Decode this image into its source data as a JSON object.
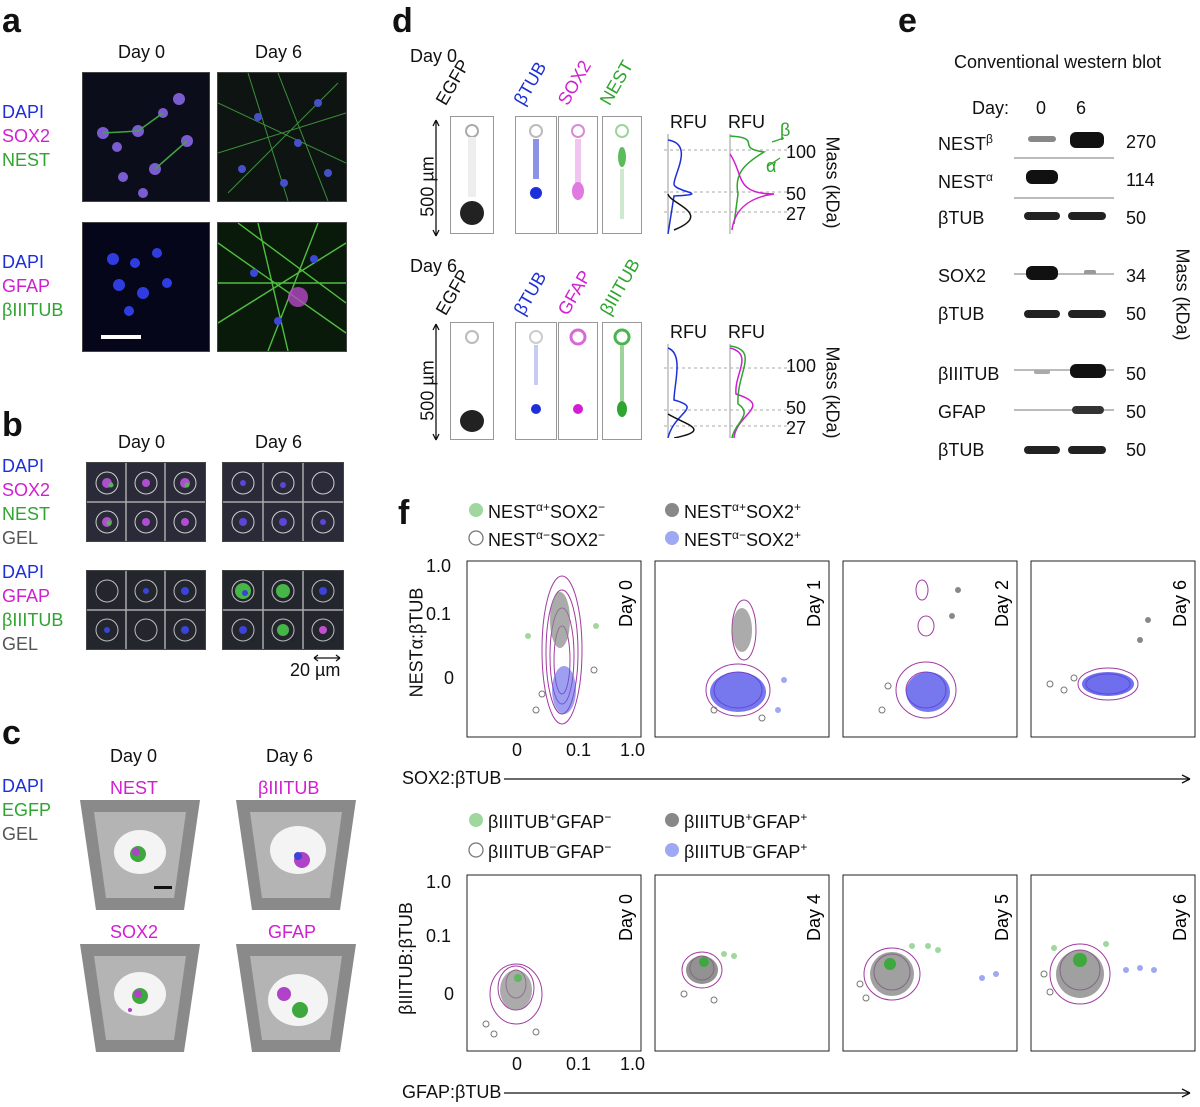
{
  "panels": {
    "a": "a",
    "b": "b",
    "c": "c",
    "d": "d",
    "e": "e",
    "f": "f"
  },
  "panel_a": {
    "days": [
      "Day 0",
      "Day 6"
    ],
    "row1_labels": [
      "DAPI",
      "SOX2",
      "NEST"
    ],
    "row2_labels": [
      "DAPI",
      "GFAP",
      "βIIITUB"
    ]
  },
  "panel_b": {
    "days": [
      "Day 0",
      "Day 6"
    ],
    "row1_labels": [
      "DAPI",
      "SOX2",
      "NEST",
      "GEL"
    ],
    "row2_labels": [
      "DAPI",
      "GFAP",
      "βIIITUB",
      "GEL"
    ],
    "scale": "20 µm"
  },
  "panel_c": {
    "days": [
      "Day 0",
      "Day 6"
    ],
    "labels": [
      "DAPI",
      "EGFP",
      "GEL"
    ],
    "markers": [
      "NEST",
      "βIIITUB",
      "SOX2",
      "GFAP"
    ]
  },
  "panel_d": {
    "day0": "Day 0",
    "day6": "Day 6",
    "egfp": "EGFP",
    "top_stains": [
      "βTUB",
      "SOX2",
      "NEST"
    ],
    "bottom_stains": [
      "βTUB",
      "GFAP",
      "βIIITUB"
    ],
    "rfu": "RFU",
    "length": "500 µm",
    "mass_axis": "Mass (kDa)",
    "top_mass_ticks": [
      "100",
      "50",
      "27"
    ],
    "bottom_mass_ticks": [
      "100",
      "50",
      "27"
    ],
    "alpha": "α",
    "beta": "β"
  },
  "panel_e": {
    "title": "Conventional western blot",
    "day_label": "Day:",
    "days": [
      "0",
      "6"
    ],
    "mass_axis": "Mass (kDa)",
    "rows": [
      {
        "name": "NEST",
        "sup": "β",
        "mass": "270"
      },
      {
        "name": "NEST",
        "sup": "α",
        "mass": "114"
      },
      {
        "name": "βTUB",
        "sup": "",
        "mass": "50"
      },
      {
        "name": "SOX2",
        "sup": "",
        "mass": "34"
      },
      {
        "name": "βTUB",
        "sup": "",
        "mass": "50"
      },
      {
        "name": "βIIITUB",
        "sup": "",
        "mass": "50"
      },
      {
        "name": "GFAP",
        "sup": "",
        "mass": "50"
      },
      {
        "name": "βTUB",
        "sup": "",
        "mass": "50"
      }
    ]
  },
  "panel_f": {
    "top_legend": [
      "NEST",
      "NEST",
      "NEST",
      "NEST"
    ],
    "top_legend_sup": [
      "α+",
      "α+",
      "α−",
      "α−"
    ],
    "top_legend_suffix": [
      "SOX2",
      "SOX2",
      "SOX2",
      "SOX2"
    ],
    "top_legend_suffix_sup": [
      "−",
      "+",
      "−",
      "+"
    ],
    "top_days": [
      "Day 0",
      "Day 1",
      "Day 2",
      "Day 6"
    ],
    "top_ylabel": "NESTα:βTUB",
    "top_xlabel": "SOX2:βTUB",
    "bottom_legend": [
      "βIIITUB",
      "βIIITUB",
      "βIIITUB",
      "βIIITUB"
    ],
    "bottom_legend_sup": [
      "+",
      "+",
      "−",
      "−"
    ],
    "bottom_legend_suffix": [
      "GFAP",
      "GFAP",
      "GFAP",
      "GFAP"
    ],
    "bottom_legend_suffix_sup": [
      "−",
      "+",
      "−",
      "+"
    ],
    "bottom_days": [
      "Day 0",
      "Day 4",
      "Day 5",
      "Day 6"
    ],
    "bottom_ylabel": "βIIITUB:βTUB",
    "bottom_xlabel": "GFAP:βTUB",
    "y_ticks": [
      "1.0",
      "0.1",
      "0"
    ],
    "x_ticks": [
      "0",
      "0.1",
      "1.0"
    ]
  },
  "colors": {
    "blue": "#1c2fd8",
    "magenta": "#d21ed2",
    "green": "#2ea52e",
    "gray": "#777777"
  }
}
